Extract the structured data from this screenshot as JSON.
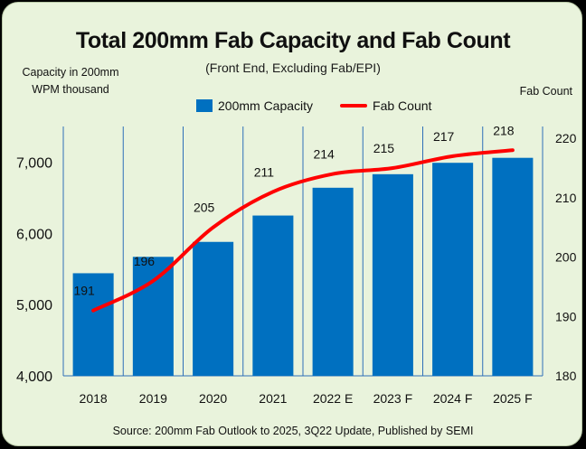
{
  "chart_data": {
    "type": "bar",
    "title": "Total 200mm Fab Capacity and Fab Count",
    "subtitle": "(Front End, Excluding Fab/EPI)",
    "ylabel": "Capacity in 200mm WPM thousand",
    "y2label": "Fab Count",
    "source": "Source: 200mm Fab Outlook to 2025, 3Q22 Update, Published by SEMI",
    "categories": [
      "2018",
      "2019",
      "2020",
      "2021",
      "2022 E",
      "2023 F",
      "2024 F",
      "2025 F"
    ],
    "ylim": [
      4000,
      7500
    ],
    "y2lim": [
      180,
      222
    ],
    "yticks": [
      "4,000",
      "5,000",
      "6,000",
      "7,000"
    ],
    "y2ticks": [
      "180",
      "190",
      "200",
      "210",
      "220"
    ],
    "grid": "vertical",
    "legend_position": "top",
    "series": [
      {
        "name": "200mm Capacity",
        "kind": "bar",
        "axis": "left",
        "color": "#0070c0",
        "values": [
          5440,
          5670,
          5880,
          6250,
          6640,
          6830,
          6990,
          7060
        ]
      },
      {
        "name": "Fab Count",
        "kind": "line",
        "axis": "right",
        "color": "#ff0000",
        "values": [
          191,
          196,
          205,
          211,
          214,
          215,
          217,
          218
        ],
        "labels": [
          "191",
          "196",
          "205",
          "211",
          "214",
          "215",
          "217",
          "218"
        ]
      }
    ]
  }
}
